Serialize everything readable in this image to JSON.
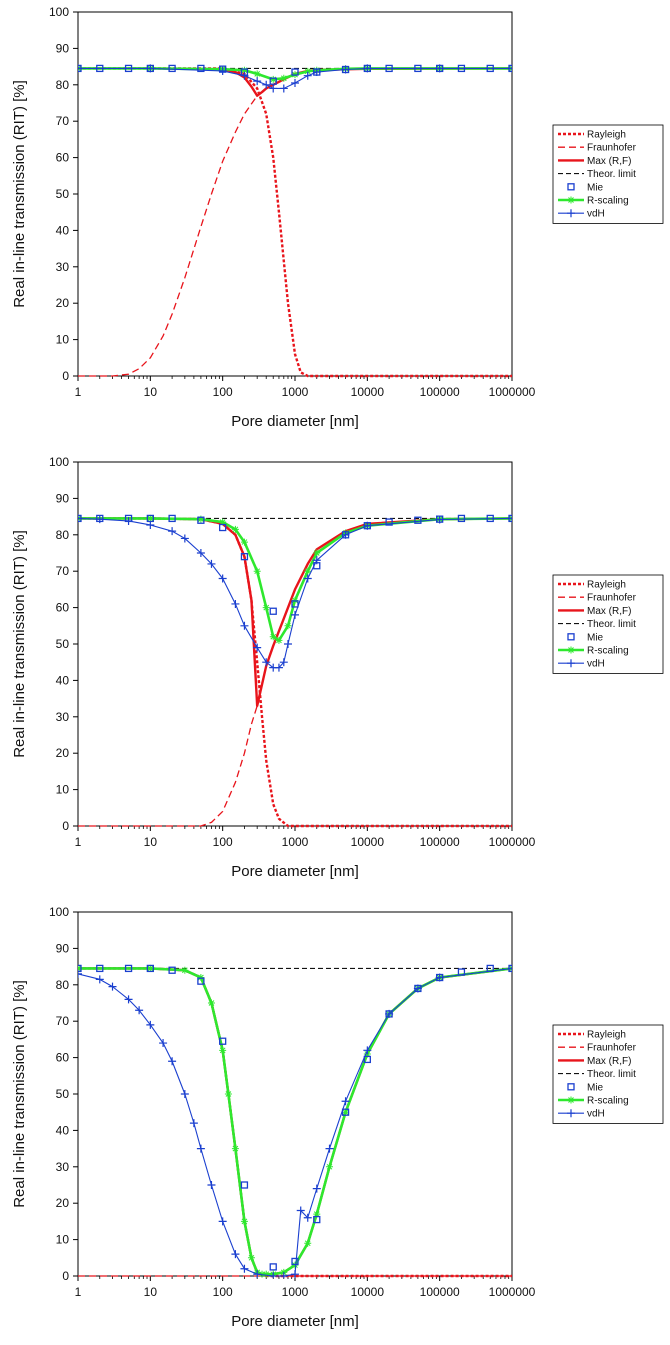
{
  "legend_items": [
    {
      "key": "rayleigh",
      "label": "Rayleigh",
      "color": "#e8141b",
      "dash": "3,2",
      "width": 2.4,
      "marker": "none"
    },
    {
      "key": "fraunhofer",
      "label": "Fraunhofer",
      "color": "#e8141b",
      "dash": "7,4",
      "width": 1.3,
      "marker": "none"
    },
    {
      "key": "max",
      "label": "Max (R,F)",
      "color": "#e8141b",
      "dash": "",
      "width": 2.4,
      "marker": "none"
    },
    {
      "key": "theor",
      "label": "Theor. limit",
      "color": "#111111",
      "dash": "5,3",
      "width": 1.1,
      "marker": "none"
    },
    {
      "key": "mie",
      "label": "Mie",
      "color": "#1a3fcf",
      "dash": "none",
      "width": 0,
      "marker": "square"
    },
    {
      "key": "rscaling",
      "label": "R-scaling",
      "color": "#2ee82e",
      "dash": "",
      "width": 2.6,
      "marker": "star"
    },
    {
      "key": "vdh",
      "label": "vdH",
      "color": "#1a3fcf",
      "dash": "",
      "width": 1.1,
      "marker": "plus"
    }
  ],
  "chart_data": [
    {
      "type": "line",
      "xscale": "log",
      "xlabel": "Pore diameter [nm]",
      "ylabel": "Real in-line transmission (RIT) [%]",
      "xlim": [
        1,
        1000000
      ],
      "ylim": [
        0,
        100
      ],
      "xticks": [
        "1",
        "10",
        "100",
        "1000",
        "10000",
        "100000",
        "1000000"
      ],
      "yticks": [
        "0",
        "10",
        "20",
        "30",
        "40",
        "50",
        "60",
        "70",
        "80",
        "90",
        "100"
      ],
      "legend_position": "right",
      "series": [
        {
          "key": "rayleigh",
          "x": [
            1,
            10,
            100,
            200,
            300,
            400,
            500,
            600,
            800,
            1000,
            1200,
            1500,
            2000,
            10000,
            100000,
            1000000
          ],
          "y": [
            84.5,
            84.5,
            84.5,
            83,
            79,
            72,
            60,
            45,
            20,
            6,
            1,
            0,
            0,
            0,
            0,
            0
          ]
        },
        {
          "key": "fraunhofer",
          "x": [
            1,
            3,
            5,
            7,
            10,
            15,
            20,
            30,
            50,
            70,
            100,
            150,
            200,
            300
          ],
          "y": [
            0,
            0,
            0.5,
            2,
            5,
            11,
            17,
            27,
            41,
            50,
            59,
            67,
            72,
            77
          ]
        },
        {
          "key": "max",
          "x": [
            100,
            150,
            200,
            250,
            300,
            350,
            400,
            500,
            700,
            1000,
            1500,
            2000,
            10000,
            1000000
          ],
          "y": [
            84.3,
            83.5,
            82,
            79.5,
            77,
            78,
            79,
            80,
            81.5,
            83,
            83.8,
            84.1,
            84.4,
            84.5
          ]
        },
        {
          "key": "theor",
          "x": [
            1,
            1000000
          ],
          "y": [
            84.5,
            84.5
          ]
        },
        {
          "key": "mie",
          "x": [
            1,
            2,
            5,
            10,
            20,
            50,
            100,
            200,
            500,
            1000,
            2000,
            5000,
            10000,
            20000,
            50000,
            100000,
            200000,
            500000,
            1000000
          ],
          "y": [
            84.5,
            84.5,
            84.5,
            84.5,
            84.5,
            84.5,
            84.3,
            83.5,
            81,
            83.5,
            83.5,
            84.2,
            84.5,
            84.5,
            84.5,
            84.5,
            84.5,
            84.5,
            84.5
          ]
        },
        {
          "key": "rscaling",
          "x": [
            1,
            10,
            100,
            200,
            300,
            500,
            700,
            1000,
            1500,
            2000,
            5000,
            10000,
            100000,
            1000000
          ],
          "y": [
            84.5,
            84.5,
            84.3,
            84,
            83,
            81.5,
            81.8,
            82.8,
            83.7,
            84,
            84.4,
            84.5,
            84.5,
            84.5
          ]
        },
        {
          "key": "vdh",
          "x": [
            1,
            10,
            100,
            200,
            300,
            400,
            500,
            700,
            1000,
            1500,
            2000,
            5000,
            10000,
            100000,
            1000000
          ],
          "y": [
            84.5,
            84.5,
            83.8,
            82.5,
            81,
            80,
            79,
            79,
            80.5,
            82.5,
            83.5,
            84.2,
            84.5,
            84.5,
            84.5
          ]
        }
      ]
    },
    {
      "type": "line",
      "xscale": "log",
      "xlabel": "Pore diameter [nm]",
      "ylabel": "Real in-line transmission (RIT) [%]",
      "xlim": [
        1,
        1000000
      ],
      "ylim": [
        0,
        100
      ],
      "xticks": [
        "1",
        "10",
        "100",
        "1000",
        "10000",
        "100000",
        "1000000"
      ],
      "yticks": [
        "0",
        "10",
        "20",
        "30",
        "40",
        "50",
        "60",
        "70",
        "80",
        "90",
        "100"
      ],
      "legend_position": "right",
      "series": [
        {
          "key": "rayleigh",
          "x": [
            1,
            10,
            50,
            100,
            150,
            200,
            250,
            300,
            350,
            400,
            500,
            600,
            800,
            1000,
            10000,
            1000000
          ],
          "y": [
            84.5,
            84.5,
            84.3,
            83,
            80,
            74,
            62,
            45,
            30,
            18,
            6,
            2,
            0,
            0,
            0,
            0
          ]
        },
        {
          "key": "fraunhofer",
          "x": [
            1,
            10,
            30,
            50,
            70,
            100,
            150,
            200,
            250,
            300
          ],
          "y": [
            0,
            0,
            0,
            0,
            1,
            4,
            12,
            20,
            28,
            33
          ]
        },
        {
          "key": "max",
          "x": [
            1,
            10,
            50,
            100,
            150,
            200,
            250,
            300,
            400,
            500,
            700,
            1000,
            1500,
            2000,
            5000,
            10000,
            100000,
            1000000
          ],
          "y": [
            84.5,
            84.5,
            84.3,
            83,
            80,
            74,
            62,
            33,
            44,
            49.5,
            57,
            65,
            72,
            76,
            81,
            83,
            84.3,
            84.5
          ]
        },
        {
          "key": "theor",
          "x": [
            1,
            1000000
          ],
          "y": [
            84.5,
            84.5
          ]
        },
        {
          "key": "mie",
          "x": [
            1,
            2,
            5,
            10,
            20,
            50,
            100,
            200,
            500,
            1000,
            2000,
            5000,
            10000,
            20000,
            50000,
            100000,
            200000,
            500000,
            1000000
          ],
          "y": [
            84.5,
            84.5,
            84.5,
            84.5,
            84.5,
            84,
            82,
            74,
            59,
            61,
            71.5,
            80,
            82.5,
            83.5,
            84,
            84.3,
            84.5,
            84.5,
            84.5
          ]
        },
        {
          "key": "rscaling",
          "x": [
            1,
            10,
            50,
            100,
            150,
            200,
            300,
            400,
            500,
            600,
            800,
            1000,
            1500,
            2000,
            5000,
            10000,
            100000,
            1000000
          ],
          "y": [
            84.5,
            84.5,
            84.3,
            83.5,
            81.5,
            78,
            70,
            60,
            52,
            51,
            55,
            62,
            70,
            75,
            80.5,
            82.5,
            84.3,
            84.5
          ]
        },
        {
          "key": "vdh",
          "x": [
            1,
            2,
            5,
            10,
            20,
            30,
            50,
            70,
            100,
            150,
            200,
            300,
            400,
            500,
            600,
            700,
            800,
            1000,
            1500,
            2000,
            5000,
            10000,
            100000,
            1000000
          ],
          "y": [
            84.5,
            84.3,
            83.8,
            82.7,
            81,
            79,
            75,
            72,
            68,
            61,
            55,
            49,
            45,
            43.5,
            43.5,
            45,
            50,
            58,
            68,
            73,
            80,
            82.5,
            84.2,
            84.5
          ]
        }
      ]
    },
    {
      "type": "line",
      "xscale": "log",
      "xlabel": "Pore diameter [nm]",
      "ylabel": "Real in-line transmission (RIT) [%]",
      "xlim": [
        1,
        1000000
      ],
      "ylim": [
        0,
        100
      ],
      "xticks": [
        "1",
        "10",
        "100",
        "1000",
        "10000",
        "100000",
        "1000000"
      ],
      "yticks": [
        "0",
        "10",
        "20",
        "30",
        "40",
        "50",
        "60",
        "70",
        "80",
        "90",
        "100"
      ],
      "legend_position": "right",
      "series": [
        {
          "key": "rayleigh",
          "x": [
            1,
            10,
            30,
            50,
            70,
            100,
            120,
            150,
            200,
            250,
            300,
            400,
            500,
            1000,
            1000000
          ],
          "y": [
            84.5,
            84.5,
            84,
            82,
            75,
            62,
            50,
            35,
            15,
            5,
            1,
            0,
            0,
            0,
            0
          ]
        },
        {
          "key": "fraunhofer",
          "x": [
            1,
            1000000
          ],
          "y": [
            0,
            0
          ]
        },
        {
          "key": "max",
          "x": [
            1,
            10,
            30,
            50,
            70,
            100,
            120,
            150,
            200,
            250,
            300,
            350,
            400,
            500,
            700,
            1000,
            1500,
            2000,
            3000,
            5000,
            10000,
            20000,
            50000,
            100000,
            1000000
          ],
          "y": [
            84.5,
            84.5,
            84,
            82,
            75,
            62,
            50,
            35,
            15,
            5,
            1,
            0.5,
            0.5,
            0.5,
            1,
            3,
            9,
            17,
            30,
            45,
            61,
            72,
            79,
            82,
            84.5
          ]
        },
        {
          "key": "theor",
          "x": [
            1,
            1000000
          ],
          "y": [
            84.5,
            84.5
          ]
        },
        {
          "key": "mie",
          "x": [
            1,
            2,
            5,
            10,
            20,
            50,
            100,
            200,
            500,
            1000,
            2000,
            5000,
            10000,
            20000,
            50000,
            100000,
            200000,
            500000,
            1000000
          ],
          "y": [
            84.5,
            84.5,
            84.5,
            84.5,
            84,
            81,
            64.5,
            25,
            2.5,
            4,
            15.5,
            45,
            59.5,
            72,
            79,
            82,
            83.5,
            84.5,
            84.5
          ]
        },
        {
          "key": "rscaling",
          "x": [
            1,
            10,
            30,
            50,
            70,
            100,
            120,
            150,
            200,
            250,
            300,
            350,
            400,
            500,
            700,
            1000,
            1500,
            2000,
            3000,
            5000,
            10000,
            20000,
            50000,
            100000,
            1000000
          ],
          "y": [
            84.5,
            84.5,
            84,
            82,
            75,
            62,
            50,
            35,
            15,
            5,
            1,
            0.5,
            0.5,
            0.5,
            1,
            3,
            9,
            17,
            30,
            45,
            61,
            72,
            79,
            82,
            84.5
          ]
        },
        {
          "key": "vdh",
          "x": [
            1,
            2,
            3,
            5,
            7,
            10,
            15,
            20,
            30,
            40,
            50,
            70,
            100,
            150,
            200,
            300,
            500,
            700,
            1000,
            1200,
            1500,
            2000,
            3000,
            5000,
            10000,
            20000,
            50000,
            100000,
            1000000
          ],
          "y": [
            83,
            81.5,
            79.5,
            76,
            73,
            69,
            64,
            59,
            50,
            42,
            35,
            25,
            15,
            6,
            2,
            0.5,
            0,
            0,
            0.5,
            18,
            16,
            24,
            35,
            48,
            62,
            72,
            79,
            82,
            84.5
          ]
        }
      ]
    }
  ]
}
